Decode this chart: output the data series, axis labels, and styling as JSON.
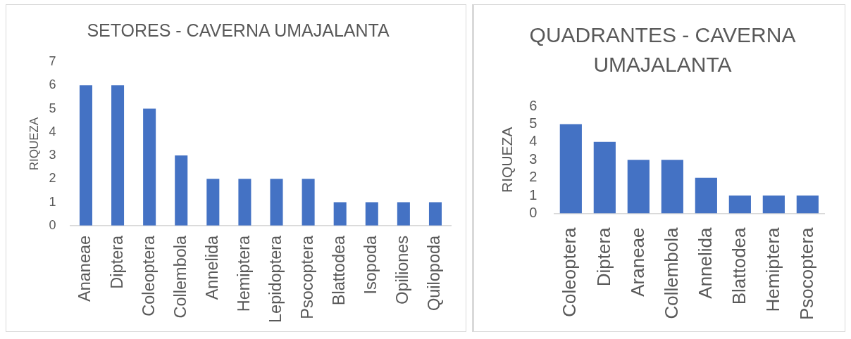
{
  "chart_data": [
    {
      "type": "bar",
      "title": "SETORES - CAVERNA UMAJALANTA",
      "ylabel": "RIQUEZA",
      "categories": [
        "Ananeae",
        "Diptera",
        "Coleoptera",
        "Collembola",
        "Annelida",
        "Hemiptera",
        "Lepidoptera",
        "Psocoptera",
        "Blattodea",
        "Isopoda",
        "Opiliones",
        "Quilopoda"
      ],
      "values": [
        6,
        6,
        5,
        3,
        2,
        2,
        2,
        2,
        1,
        1,
        1,
        1
      ],
      "color": "#4472c4",
      "ylim": [
        0,
        7
      ],
      "yticks": [
        0,
        1,
        2,
        3,
        4,
        5,
        6,
        7
      ]
    },
    {
      "type": "bar",
      "title": "QUADRANTES - CAVERNA UMAJALANTA",
      "ylabel": "RIQUEZA",
      "categories": [
        "Coleoptera",
        "Diptera",
        "Araneae",
        "Collembola",
        "Annelida",
        "Blattodea",
        "Hemiptera",
        "Psocoptera"
      ],
      "values": [
        5,
        4,
        3,
        3,
        2,
        1,
        1,
        1
      ],
      "color": "#4472c4",
      "ylim": [
        0,
        6
      ],
      "yticks": [
        0,
        1,
        2,
        3,
        4,
        5,
        6
      ]
    }
  ]
}
